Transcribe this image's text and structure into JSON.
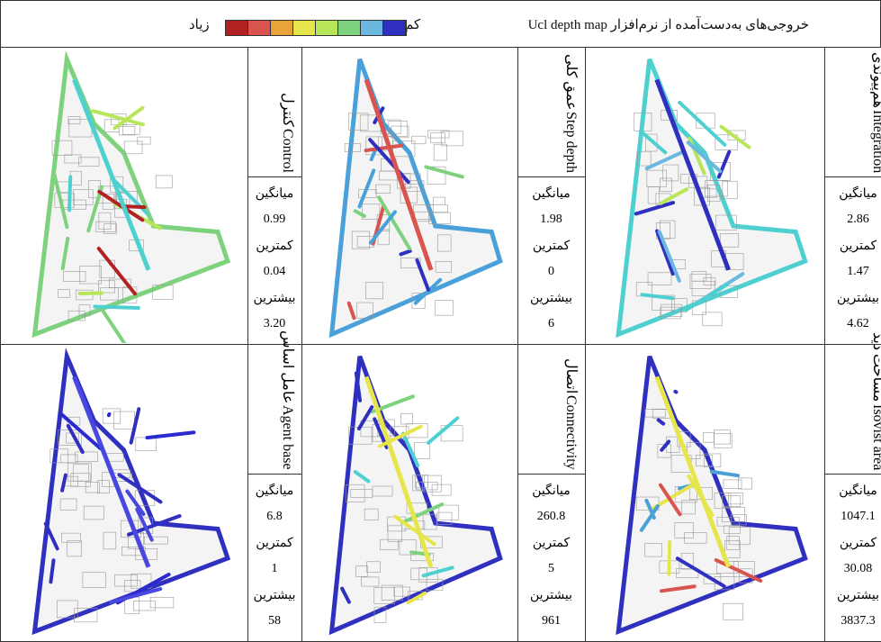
{
  "header": {
    "title": "خروجی‌های به‌دست‌آمده از نرم‌افزار Ucl depth map",
    "legend": {
      "low": "کم",
      "high": "زیاد"
    }
  },
  "table": {
    "rows": [
      [
        {
          "name_en": "Integration",
          "name_fa": "هم‌پیوندی",
          "mean_label": "میانگین",
          "mean": "2.86",
          "min_label": "کمترین",
          "min": "1.47",
          "max_label": "بیشترین",
          "max": "4.62"
        },
        {
          "name_en": "Step depth",
          "name_fa": "عمق کلی",
          "mean_label": "میانگین",
          "mean": "1.98",
          "min_label": "کمترین",
          "min": "0",
          "max_label": "بیشترین",
          "max": "6"
        },
        {
          "name_en": "Control",
          "name_fa": "کنترل",
          "mean_label": "میانگین",
          "mean": "0.99",
          "min_label": "کمترین",
          "min": "0.04",
          "max_label": "بیشترین",
          "max": "3.20"
        }
      ],
      [
        {
          "name_en": "Isovist area",
          "name_fa": "مساحت دید",
          "mean_label": "میانگین",
          "mean": "1047.1",
          "min_label": "کمترین",
          "min": "30.08",
          "max_label": "بیشترین",
          "max": "3837.3"
        },
        {
          "name_en": "Connectivity",
          "name_fa": "اتصال",
          "mean_label": "میانگین",
          "mean": "260.8",
          "min_label": "کمترین",
          "min": "5",
          "max_label": "بیشترین",
          "max": "961"
        },
        {
          "name_en": "Agent base",
          "name_fa": "عامل اساس",
          "mean_label": "میانگین",
          "mean": "6.8",
          "min_label": "کمترین",
          "min": "1",
          "max_label": "بیشترین",
          "max": "58"
        }
      ]
    ]
  }
}
